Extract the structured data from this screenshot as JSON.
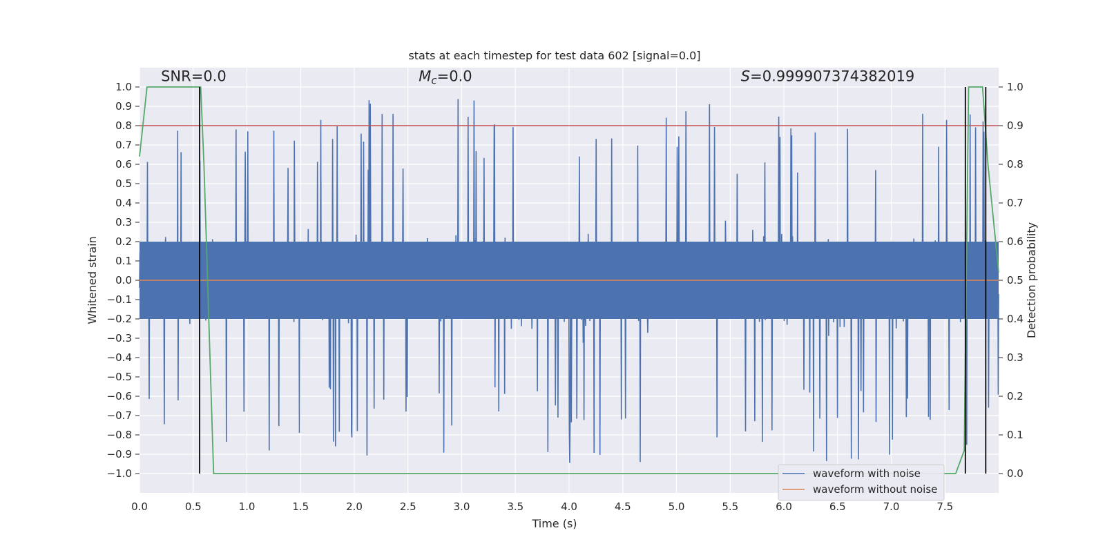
{
  "chart_data": {
    "type": "line",
    "title": "stats at each timestep for test data 602 [signal=0.0]",
    "xlabel": "Time (s)",
    "ylabel": "Whitened strain",
    "y2label": "Detection probability",
    "xlim": [
      0.0,
      8.0
    ],
    "ylim": [
      -1.1,
      1.1
    ],
    "y2lim": [
      -0.05,
      1.05
    ],
    "xticks": [
      0.0,
      0.5,
      1.0,
      1.5,
      2.0,
      2.5,
      3.0,
      3.5,
      4.0,
      4.5,
      5.0,
      5.5,
      6.0,
      6.5,
      7.0,
      7.5
    ],
    "xtick_labels": [
      "0.0",
      "0.5",
      "1.0",
      "1.5",
      "2.0",
      "2.5",
      "3.0",
      "3.5",
      "4.0",
      "4.5",
      "5.0",
      "5.5",
      "6.0",
      "6.5",
      "7.0",
      "7.5"
    ],
    "yticks": [
      1.0,
      0.9,
      0.8,
      0.7,
      0.6,
      0.5,
      0.4,
      0.3,
      0.2,
      0.1,
      0.0,
      -0.1,
      -0.2,
      -0.3,
      -0.4,
      -0.5,
      -0.6,
      -0.7,
      -0.8,
      -0.9,
      -1.0
    ],
    "ytick_labels": [
      "1.0",
      "0.9",
      "0.8",
      "0.7",
      "0.6",
      "0.5",
      "0.4",
      "0.3",
      "0.2",
      "0.1",
      "0.0",
      "−0.1",
      "−0.2",
      "−0.3",
      "−0.4",
      "−0.5",
      "−0.6",
      "−0.7",
      "−0.8",
      "−0.9",
      "−1.0"
    ],
    "y2ticks": [
      1.0,
      0.9,
      0.8,
      0.7,
      0.6,
      0.5,
      0.4,
      0.3,
      0.2,
      0.1,
      0.0
    ],
    "y2tick_labels": [
      "1.0",
      "0.9",
      "0.8",
      "0.7",
      "0.6",
      "0.5",
      "0.4",
      "0.3",
      "0.2",
      "0.1",
      "0.0"
    ],
    "annotations": [
      {
        "id": "snr",
        "text": "SNR=0.0",
        "x": 0.2,
        "y": 1.03
      },
      {
        "id": "mc",
        "symbol": "M",
        "subscript": "c",
        "text": "=0.0",
        "x": 2.6,
        "y": 1.03
      },
      {
        "id": "s",
        "symbol": "S",
        "text": "=0.999907374382019",
        "x": 5.6,
        "y": 1.03
      }
    ],
    "noise_waveform": {
      "name": "waveform with noise",
      "color": "#4c72b0",
      "samples": 2048,
      "typical_amplitude": 0.25,
      "peak_amplitude": 1.0
    },
    "clean_waveform": {
      "name": "waveform without noise",
      "color": "#dd8452",
      "constant_value": 0.0
    },
    "threshold": {
      "value": 0.9,
      "axis": "y2",
      "color": "#c44e52"
    },
    "detection_probability": {
      "name": "detection probability",
      "color": "#55a868",
      "x": [
        0.0,
        0.07,
        0.12,
        0.57,
        0.6,
        0.69,
        1.5,
        3.0,
        4.5,
        6.0,
        7.0,
        7.6,
        7.68,
        7.72,
        7.85,
        7.9,
        8.0
      ],
      "y": [
        0.82,
        1.0,
        1.0,
        1.0,
        0.8,
        0.0,
        0.0,
        0.0,
        0.0,
        0.0,
        0.0,
        0.0,
        0.06,
        1.0,
        1.0,
        0.8,
        0.52
      ]
    },
    "vertical_markers": [
      0.56,
      7.69,
      7.88
    ],
    "legend": {
      "location": "lower-right",
      "entries": [
        "waveform with noise",
        "waveform without noise"
      ]
    },
    "colors": {
      "axes_bg": "#eaeaf2",
      "grid": "#ffffff",
      "text": "#262626",
      "marker": "#000000"
    }
  }
}
